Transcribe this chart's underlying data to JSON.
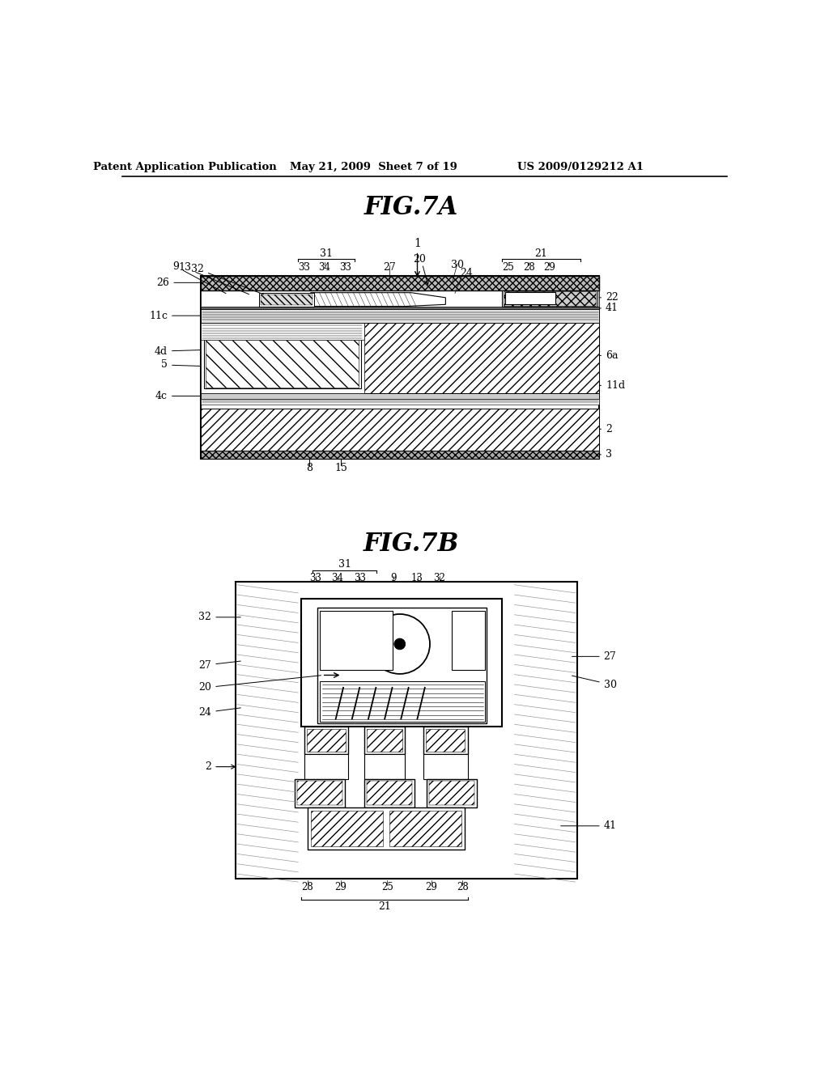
{
  "bg_color": "#ffffff",
  "header_left": "Patent Application Publication",
  "header_mid": "May 21, 2009  Sheet 7 of 19",
  "header_right": "US 2009/0129212 A1",
  "fig7a_title": "FIG.7A",
  "fig7b_title": "FIG.7B"
}
